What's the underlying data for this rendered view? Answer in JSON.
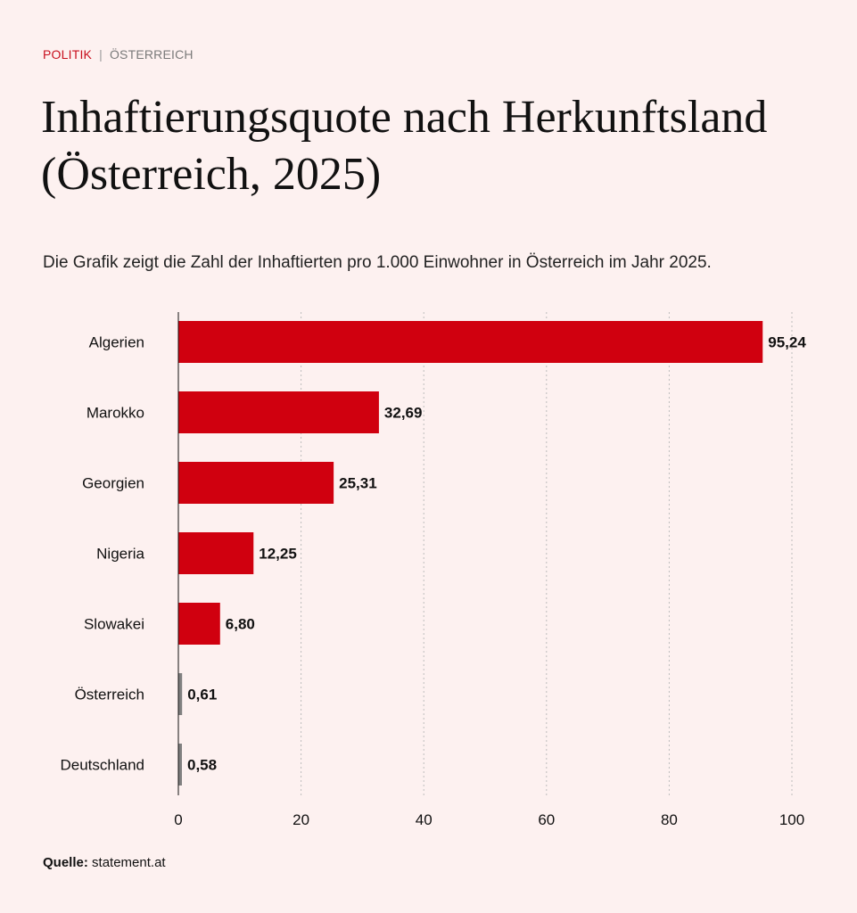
{
  "header": {
    "category": "POLITIK",
    "separator": "|",
    "subcategory": "ÖSTERREICH"
  },
  "title": "Inhaftierungsquote nach Herkunftsland (Österreich, 2025)",
  "subtitle": "Die Grafik zeigt die Zahl der Inhaftierten pro 1.000 Einwohner in Österreich im Jahr 2025.",
  "source": {
    "label": "Quelle:",
    "text": "statement.at"
  },
  "colors": {
    "background": "#fdf1f0",
    "highlight": "#d0000f",
    "reference": "#808080",
    "category_red": "#c8101e"
  },
  "chart_data": {
    "type": "bar",
    "orientation": "horizontal",
    "categories": [
      "Algerien",
      "Marokko",
      "Georgien",
      "Nigeria",
      "Slowakei",
      "Österreich",
      "Deutschland"
    ],
    "values": [
      95.24,
      32.69,
      25.31,
      12.25,
      6.8,
      0.61,
      0.58
    ],
    "value_labels": [
      "95,24",
      "32,69",
      "25,31",
      "12,25",
      "6,80",
      "0,61",
      "0,58"
    ],
    "bar_colors": [
      "#d0000f",
      "#d0000f",
      "#d0000f",
      "#d0000f",
      "#d0000f",
      "#808080",
      "#808080"
    ],
    "xlim": [
      0,
      100
    ],
    "xticks": [
      0,
      20,
      40,
      60,
      80,
      100
    ],
    "grid": "vertical dotted",
    "legend": "none"
  }
}
